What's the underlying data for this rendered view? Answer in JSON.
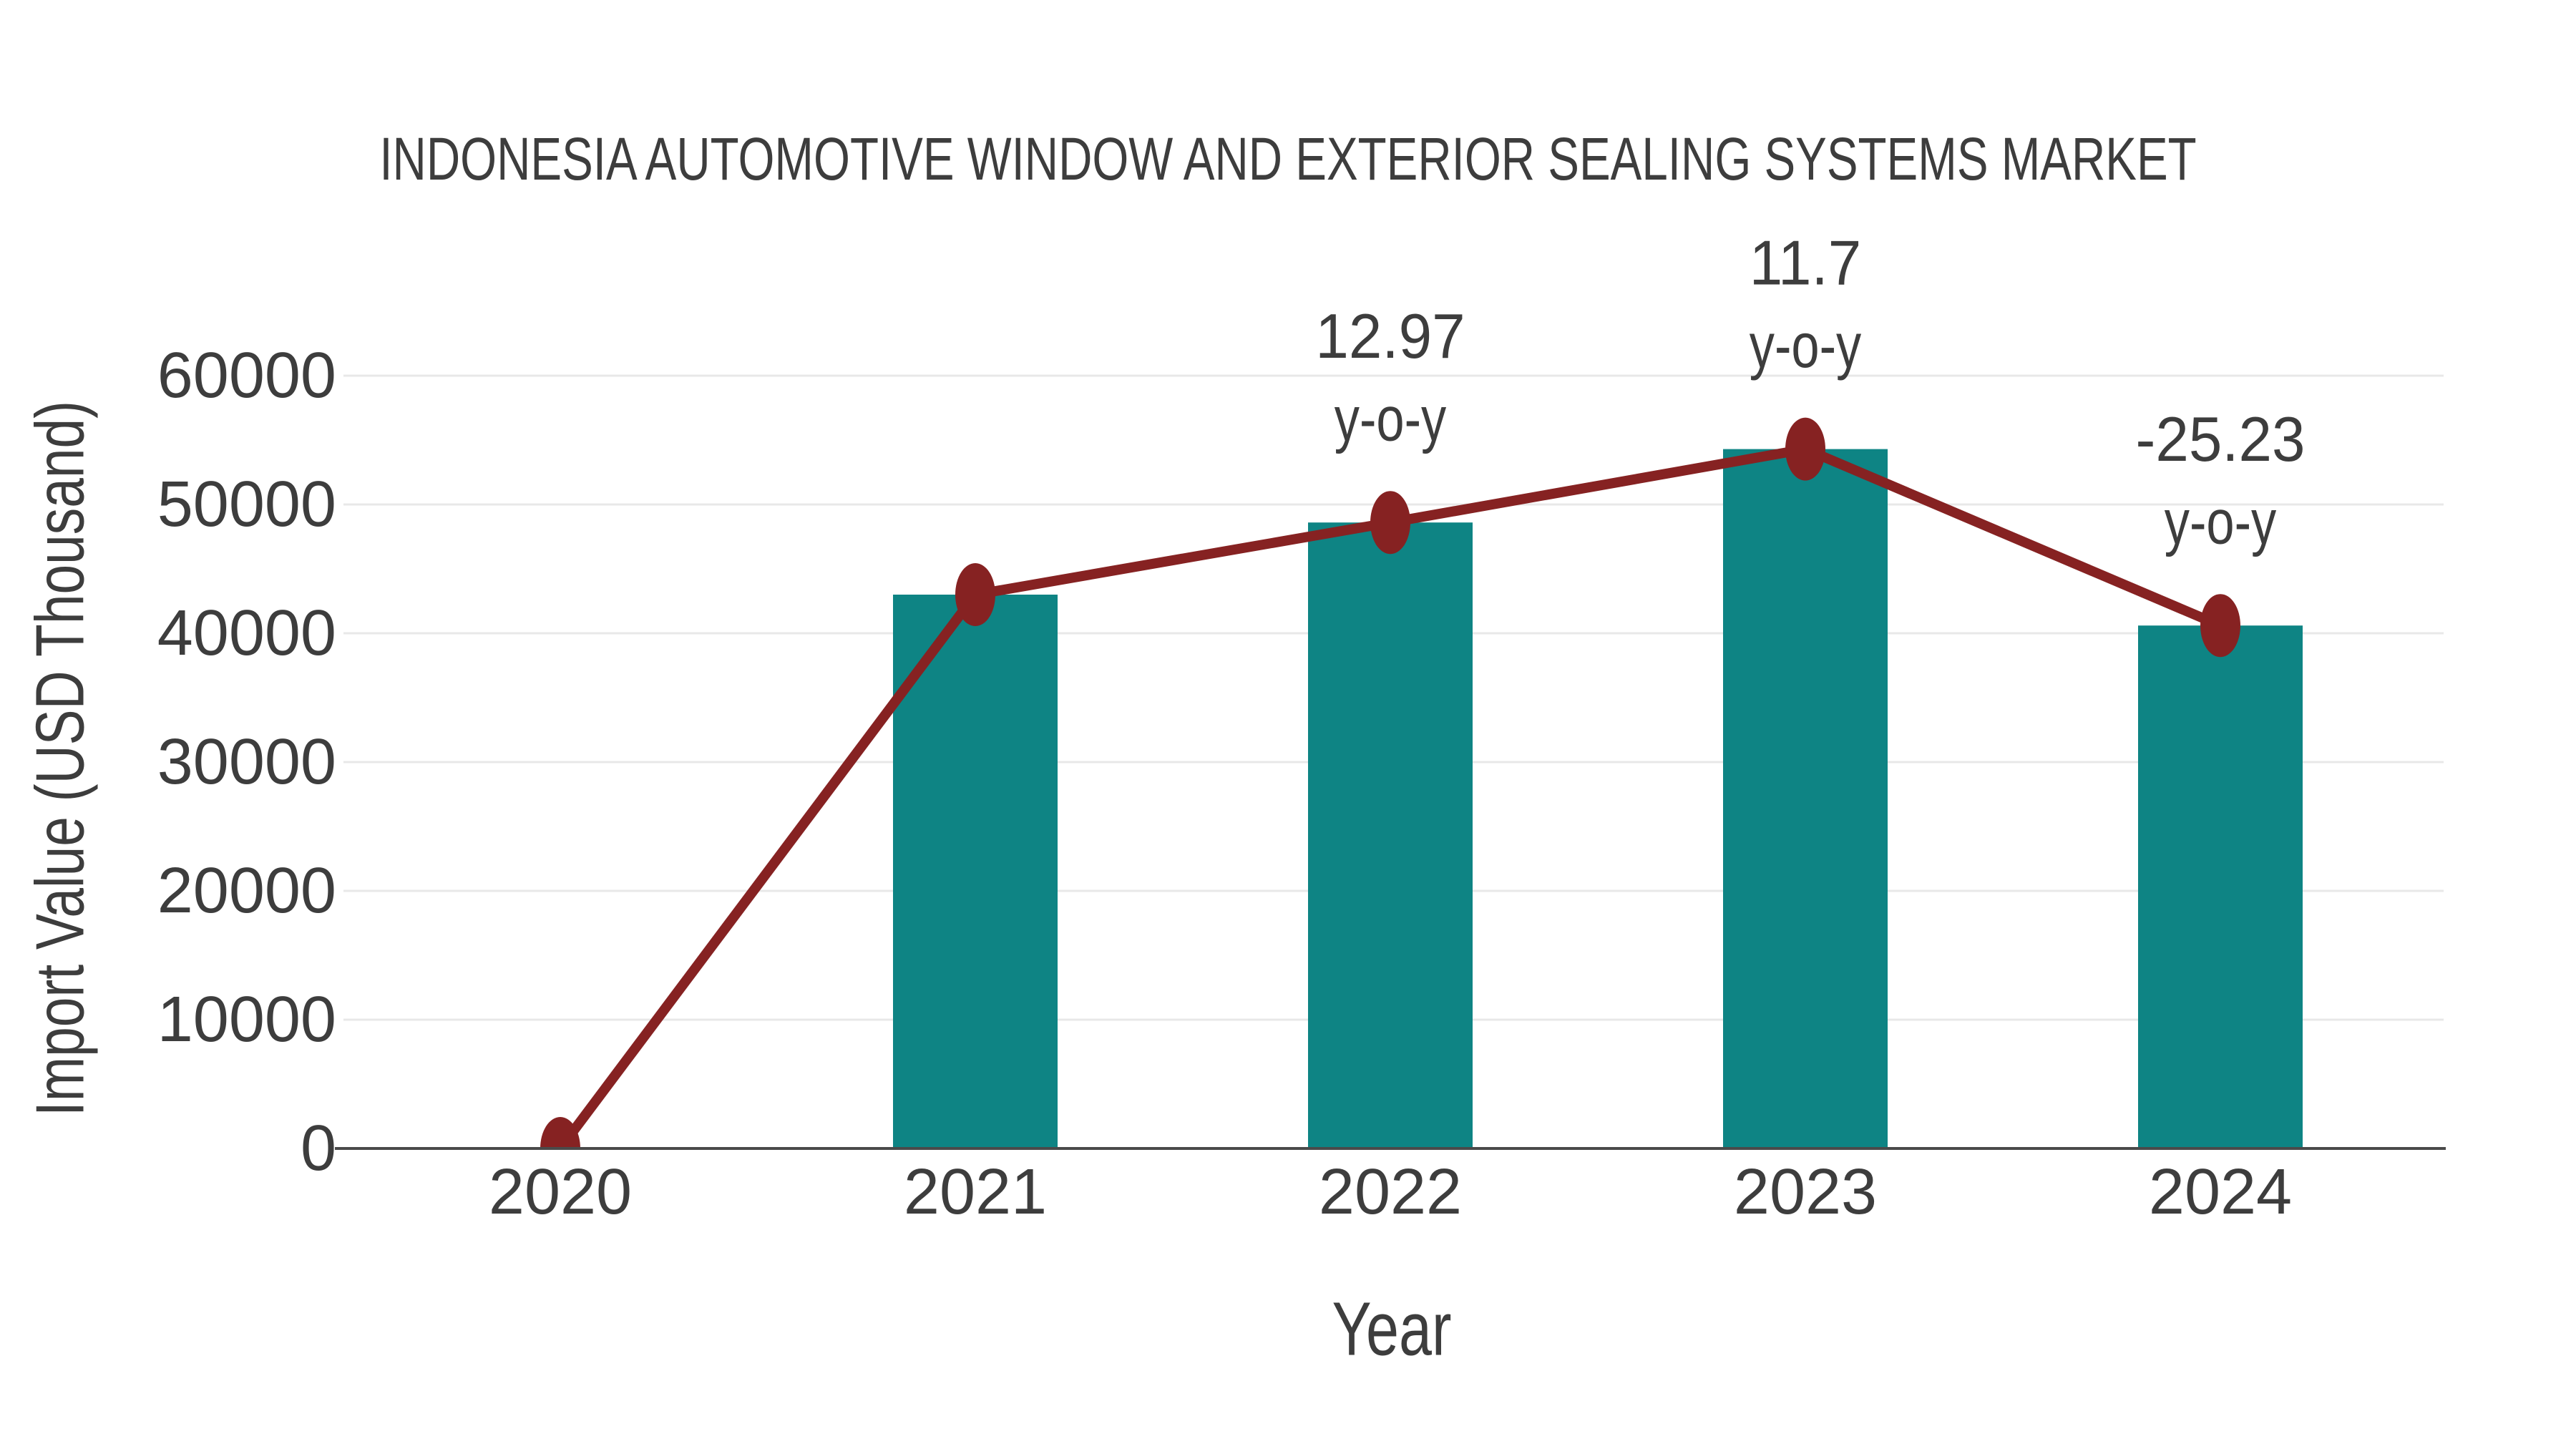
{
  "chart_data": {
    "type": "bar",
    "title": "INDONESIA AUTOMOTIVE WINDOW AND EXTERIOR SEALING SYSTEMS MARKET",
    "xlabel": "Year",
    "ylabel": "Import Value (USD Thousand)",
    "categories": [
      "2020",
      "2021",
      "2022",
      "2023",
      "2024"
    ],
    "series": [
      {
        "name": "import-value-bars",
        "type": "bar",
        "values": [
          null,
          43000,
          48600,
          54300,
          40600
        ]
      },
      {
        "name": "import-value-line",
        "type": "line",
        "values": [
          0,
          43000,
          48600,
          54300,
          40600
        ]
      }
    ],
    "annotations": [
      {
        "category": "2022",
        "value_line": "12.97",
        "suffix_line": "y-o-y"
      },
      {
        "category": "2023",
        "value_line": "11.7",
        "suffix_line": "y-o-y"
      },
      {
        "category": "2024",
        "value_line": "-25.23",
        "suffix_line": "y-o-y"
      }
    ],
    "yticks": [
      0,
      10000,
      20000,
      30000,
      40000,
      50000,
      60000
    ],
    "ylim": [
      0,
      60000
    ],
    "grid": true,
    "legend_position": "none",
    "colors": {
      "bar": "#0E8484",
      "line": "#862222",
      "marker": "#862222",
      "gridline": "#e8e8e8",
      "axis_line": "#4a4a4a",
      "text": "#3d3d3d"
    }
  }
}
